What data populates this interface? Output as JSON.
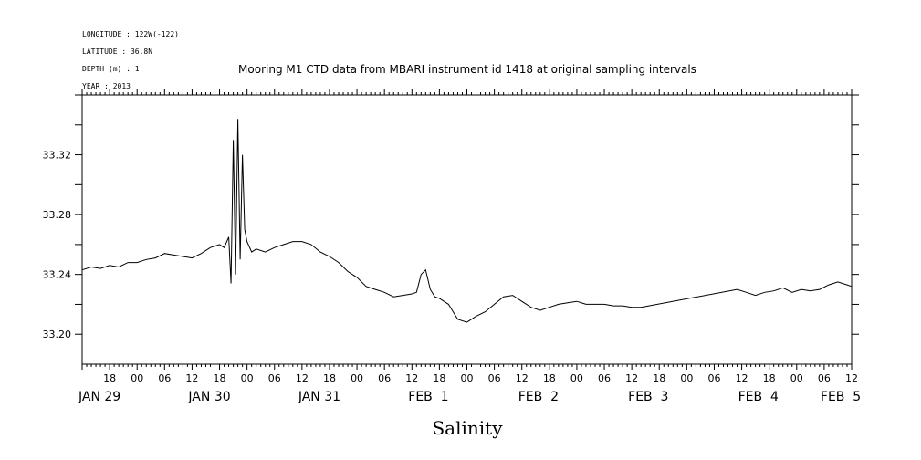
{
  "header": {
    "longitude": "LONGITUDE : 122W(-122)",
    "latitude": "LATITUDE : 36.8N",
    "depth": "DEPTH (m) : 1",
    "year": "YEAR : 2013"
  },
  "chart_data": {
    "type": "line",
    "title": "Mooring M1 CTD data from MBARI instrument id 1418 at original sampling intervals",
    "xlabel": "Salinity",
    "ylabel": "",
    "x_unit": "hours since JAN 29 00:00 (2013)",
    "xlim": [
      12,
      180
    ],
    "ylim": [
      33.18,
      33.36
    ],
    "y_ticks": [
      33.2,
      33.24,
      33.28,
      33.32
    ],
    "y_tick_labels": [
      "33.20",
      "33.24",
      "33.28",
      "33.32"
    ],
    "x_hour_ticks": [
      18,
      24,
      30,
      36,
      42,
      48,
      54,
      60,
      66,
      72,
      78,
      84,
      90,
      96,
      102,
      108,
      114,
      120,
      126,
      132,
      138,
      144,
      150,
      156,
      162,
      168,
      174,
      180
    ],
    "x_hour_labels": [
      "18",
      "00",
      "06",
      "12",
      "18",
      "00",
      "06",
      "12",
      "18",
      "00",
      "06",
      "12",
      "18",
      "00",
      "06",
      "12",
      "18",
      "00",
      "06",
      "12",
      "18",
      "00",
      "06",
      "12",
      "18",
      "00",
      "06",
      "12"
    ],
    "x_day_labels": [
      {
        "text": "JAN 29",
        "hour": 12
      },
      {
        "text": "JAN 30",
        "hour": 36
      },
      {
        "text": "JAN 31",
        "hour": 60
      },
      {
        "text": "FEB  1",
        "hour": 84
      },
      {
        "text": "FEB  2",
        "hour": 108
      },
      {
        "text": "FEB  3",
        "hour": 132
      },
      {
        "text": "FEB  4",
        "hour": 156
      },
      {
        "text": "FEB  5",
        "hour": 174
      }
    ],
    "series": [
      {
        "name": "",
        "x": [
          12,
          14,
          16,
          18,
          20,
          22,
          24,
          26,
          28,
          30,
          32,
          34,
          36,
          38,
          40,
          42,
          43,
          44,
          44.5,
          45,
          45.5,
          46,
          46.5,
          47,
          47.5,
          48,
          49,
          50,
          52,
          54,
          56,
          58,
          60,
          62,
          64,
          66,
          68,
          70,
          72,
          74,
          76,
          78,
          80,
          82,
          84,
          85,
          86,
          87,
          88,
          89,
          90,
          91,
          92,
          93,
          94,
          96,
          98,
          100,
          102,
          104,
          106,
          108,
          110,
          112,
          114,
          116,
          118,
          120,
          122,
          124,
          126,
          128,
          130,
          132,
          134,
          155,
          157,
          159,
          161,
          163,
          165,
          167,
          169,
          171,
          173,
          175,
          177,
          179,
          180
        ],
        "y": [
          33.243,
          33.245,
          33.244,
          33.246,
          33.245,
          33.248,
          33.248,
          33.25,
          33.251,
          33.254,
          33.253,
          33.252,
          33.251,
          33.254,
          33.258,
          33.26,
          33.258,
          33.265,
          33.234,
          33.33,
          33.24,
          33.344,
          33.25,
          33.32,
          33.27,
          33.262,
          33.255,
          33.257,
          33.255,
          33.258,
          33.26,
          33.262,
          33.262,
          33.26,
          33.255,
          33.252,
          33.248,
          33.242,
          33.238,
          33.232,
          33.23,
          33.228,
          33.225,
          33.226,
          33.227,
          33.228,
          33.24,
          33.243,
          33.23,
          33.225,
          33.224,
          33.222,
          33.22,
          33.215,
          33.21,
          33.208,
          33.212,
          33.215,
          33.22,
          33.225,
          33.226,
          33.222,
          33.218,
          33.216,
          33.218,
          33.22,
          33.221,
          33.222,
          33.22,
          33.22,
          33.22,
          33.219,
          33.219,
          33.218,
          33.218,
          33.23,
          33.228,
          33.226,
          33.228,
          33.229,
          33.231,
          33.228,
          33.23,
          33.229,
          33.23,
          33.233,
          33.235,
          33.233,
          33.232
        ]
      }
    ]
  }
}
